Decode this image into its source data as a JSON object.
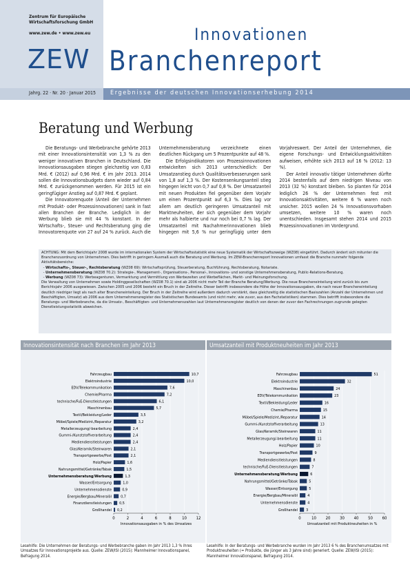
{
  "header": {
    "org": "Zentrum für Europäische Wirtschaftsforschung GmbH",
    "web": "www.zew.de • www.zew.eu",
    "logo": "ZEW",
    "series_title": "Innovationen",
    "report_title": "Branchenreport",
    "issue": "Jahrg. 22 · Nr. 20 · Januar 2015",
    "subtitle": "Ergebnisse der deutschen Innovationserhebung 2014"
  },
  "article": {
    "title": "Beratung und Werbung",
    "paragraphs": [
      "Die Beratungs- und Werbebranche gehörte 2013 mit einer Innovationsintensität von 1,3 % zu den weniger innovativen Branchen in Deutschland. Die Innovationsausgaben stiegen gleichzeitig von 0,83 Mrd. € (2012) auf 0,96 Mrd. € im Jahr 2013. 2014 sollen die Innovationsbudgets dann wieder auf 0,84 Mrd. € zurückgenommen werden. Für 2015 ist ein geringfügiger Anstieg auf 0,87 Mrd. € geplant.",
      "Die Innovatorenquote (Anteil der Unternehmen mit Produkt- oder Prozessinnovationen) sank in fast allen Branchen der Branche. Lediglich in der Werbung blieb sie mit 44 % konstant. In der Wirtschafts-, Steuer- und Rechtsberatung ging die Innovatorenquote von 27 auf 24 % zurück. Auch die Unternehmensberatung verzeichnete einen deutlichen Rückgang um 5 Prozentpunkte auf 48 %.",
      "Die Erfolgsindikatoren von Prozessinnovationen entwickelten sich 2013 unterschiedlich: Der Umsatzanstieg durch Qualitätsverbesserungen sank von 1,8 auf 1,3 %. Der Kostensenkungsanteil stieg hingegen leicht von 0,7 auf 0,8 %. Der Umsatzanteil mit neuen Produkten fiel gegenüber dem Vorjahr um einen Prozentpunkt auf 6,3 %. Dies lag vor allem am deutlich geringeren Umsatzanteil mit Marktneuheiten, der sich gegenüber dem Vorjahr mehr als halbierte und nur noch bei 0,7 % lag. Der Umsatzanteil mit Nachahmerinnovationen blieb hingegen mit 5,6 % nur geringfügig unter dem Vorjahreswert. Der Anteil der Unternehmen, die eigene Forschungs- und Entwicklungsaktivitäten aufweisen, erhöhte sich 2013 auf 16 % (2012: 13 %).",
      "Der Anteil innovativ tätiger Unternehmen dürfte 2014 bestenfalls auf dem niedrigen Niveau von 2013 (32 %) konstant bleiben. So planten für 2014 lediglich 26 % der Unternehmen fest mit Innovationsaktivitäten, weitere 6 % waren noch unsicher. 2015 wollen 24 % Innovationsvorhaben umsetzen, weitere 10 % waren noch unentschieden. Insgesamt stehen 2014 und 2015 Prozessinnovationen im Vordergrund."
    ]
  },
  "note": {
    "intro": "ACHTUNG: Mit dem Berichtsjahr 2008 wurde im internationalen System der Wirtschaftsstatistik eine neue Systematik der Wirtschaftszweige (WZ08) eingeführt. Dadurch ändert sich mitunter die Branchenzuordnung von Unternehmen. Dies betrifft in geringem Ausmaß auch die Beratung und Werbung. Im ZEW-Branchenreport Innovationen umfasst die Branche nunmehr folgende Aktivitätsbereiche:",
    "items": [
      {
        "term": "Wirtschafts-, Steuer-, Rechtsberatung",
        "text": "(WZ08 69): Wirtschaftsprüfung, Steuerberatung, Buchführung, Rechtsberatung, Notariate."
      },
      {
        "term": "Unternehmensberatung",
        "text": "(WZ08 70.2): Strategie-, Management-, Organisations-, Personal-, Innovations- und sonstige Unternehmensberatung, Public-Relations-Beratung."
      },
      {
        "term": "Werbung",
        "text": "(WZ08 73): Werbeagenturen, Vermarktung und Vermittlung von Werbezeiten und Werbeflächen, Markt- und Meinungsforschung."
      }
    ],
    "body": "Die Verwaltung von Unternehmen sowie Holdinggesellschaften (WZ08 70.1) sind ab 2006 nicht mehr Teil der Branche Beratung/Werbung. Die neue Brancheneinteilung wird zurück bis zum Berichtsjahr 2006 ausgewiesen. Zwischen 2005 und 2006 besteht ein Bruch in der Zeitreihe. Dieser betrifft insbesondere die Höhe der Innovationsausgaben, die nach neuer Brancheneinteilung deutlich niedriger liegt als nach alter Brancheneinteilung. Der Bruch in der Zeitreihe wird außerdem dadurch verstärkt, dass gleichzeitig die statistischen Basiszahlen (Anzahl der Unternehmen und Beschäftigten, Umsatz) ab 2006 aus dem Unternehmensregister des Statistischen Bundesamts (und nicht mehr, wie zuvor, aus den Fachstatistiken) stammen. Dies betrifft insbesondere die Beratungs- und Werbebranche, da die Umsatz-, Beschäftigten- und Unternehmenszahlen laut Unternehmensregister deutlich von denen der zuvor den Fachrechnungen zugrunde gelegten Dienstleistungsstatistik abweichen."
  },
  "chart_data": [
    {
      "type": "hbar",
      "title": "Innovationsintensität nach Branchen im Jahr 2013",
      "color": "#1f3966",
      "highlight": "Unternehmensberatung/Werbung",
      "highlight_color": "#0a1730",
      "categories": [
        "Fahrzeugbau",
        "Elektroindustrie",
        "EDV/Telekommunikation",
        "Chemie/Pharma",
        "technische/FuE-Dienstleistungen",
        "Maschinenbau",
        "Textil/Bekleidung/Leder",
        "Möbel/Spiele/Medizint./Reparatur",
        "Metallerzeugung/-bearbeitung",
        "Gummi-/Kunststoffverarbeitung",
        "Mediendienstleistungen",
        "Glas/Keramik/Steinwaren",
        "Transportgewerbe/Post",
        "Holz/Papier",
        "Nahrungsmittel/Getränke/Tabak",
        "Unternehmensberatung/Werbung",
        "Wasser/Entsorgung",
        "Unternehmensdienste",
        "Energie/Bergbau/Mineralöl",
        "Finanzdienstleistungen",
        "Großhandel"
      ],
      "values": [
        10.7,
        10.0,
        7.6,
        7.2,
        6.1,
        5.7,
        3.5,
        3.2,
        2.4,
        2.4,
        2.4,
        2.1,
        2.1,
        1.6,
        1.5,
        1.3,
        1.0,
        0.9,
        0.7,
        0.5,
        0.2
      ],
      "value_labels": [
        "10,7",
        "10,0",
        "7,6",
        "7,2",
        "6,1",
        "5,7",
        "3,5",
        "3,2",
        "2,4",
        "2,4",
        "2,4",
        "2,1",
        "2,1",
        "1,6",
        "1,5",
        "1,3",
        "1,0",
        "0,9",
        "0,7",
        "0,5",
        "0,2"
      ],
      "xlim": [
        0,
        12
      ],
      "xticks": [
        0,
        2,
        4,
        6,
        8,
        10,
        12
      ],
      "xlabel": "Innovationsausgaben in % des Umsatzes",
      "caption": "Lesehilfe: Die Unternehmen der Beratungs- und Werbebranche gaben im Jahr 2013 1,3 % ihres Umsatzes für Innovationsprojekte aus. Quelle: ZEW/ISI (2015): Mannheimer Innovationspanel, Befragung 2014."
    },
    {
      "type": "hbar",
      "title": "Umsatzanteil mit Produktneuheiten im Jahr 2013",
      "color": "#1f3966",
      "highlight": "Unternehmensberatung/Werbung",
      "highlight_color": "#0a1730",
      "categories": [
        "Fahrzeugbau",
        "Elektroindustrie",
        "Maschinenbau",
        "EDV/Telekommunikation",
        "Textil/Bekleidung/Leder",
        "Chemie/Pharma",
        "Möbel/Spiele/Medizint./Reparatur",
        "Gummi-/Kunststoffverarbeitung",
        "Glas/Keramik/Steinwaren",
        "Metallerzeugung/-bearbeitung",
        "Holz/Papier",
        "Transportgewerbe/Post",
        "Mediendienstleistungen",
        "technische/FuE-Dienstleistungen",
        "Unternehmensberatung/Werbung",
        "Nahrungsmittel/Getränke/Tabak",
        "Wasser/Entsorgung",
        "Energie/Bergbau/Mineralöl",
        "Unternehmensdienste",
        "Großhandel"
      ],
      "values": [
        51,
        32,
        24,
        23,
        16,
        15,
        14,
        13,
        11,
        11,
        10,
        9,
        8,
        7,
        6,
        5,
        5,
        4,
        4,
        3
      ],
      "xlim": [
        0,
        60
      ],
      "xticks": [
        0,
        10,
        20,
        30,
        40,
        50,
        60
      ],
      "xlabel": "Umsatzanteil mit Produktneuheiten in %",
      "caption": "Lesehilfe: In der Beratungs- und Werbebranche wurden im Jahr 2013 6 % des Branchenumsatzes mit Produktneuheiten (= Produkte, die jünger als 3 Jahre sind) generiert. Quelle: ZEW/ISI (2015): Mannheimer Innovationspanel, Befragung 2014."
    }
  ]
}
